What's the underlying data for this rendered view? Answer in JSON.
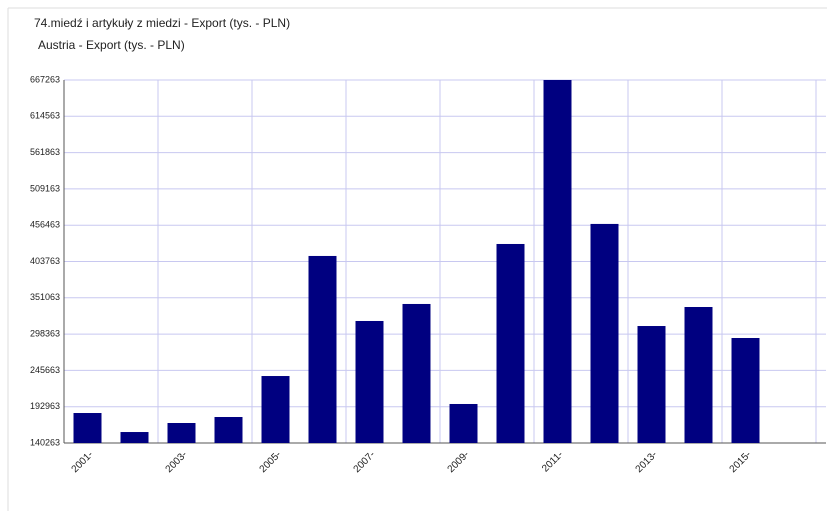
{
  "chart_data": {
    "type": "bar",
    "title": "74.miedź i artykuły z miedzi - Export  (tys. - PLN)",
    "subtitle": "Austria - Export  (tys. - PLN)",
    "categories": [
      "2001-",
      null,
      "2003-",
      null,
      "2005-",
      null,
      "2007-",
      null,
      "2009-",
      null,
      "2011-",
      null,
      "2013-",
      null,
      "2015-",
      null
    ],
    "values": [
      183800,
      156200,
      169300,
      178000,
      237500,
      411800,
      317400,
      342100,
      196900,
      429200,
      667263,
      458300,
      310100,
      337700,
      292700,
      null
    ],
    "color": "#000080",
    "ylim": [
      140263,
      667263
    ],
    "yticks": [
      140263,
      192963,
      245663,
      298363,
      351063,
      403763,
      456463,
      509163,
      561863,
      614563,
      667263
    ],
    "grid": true
  }
}
